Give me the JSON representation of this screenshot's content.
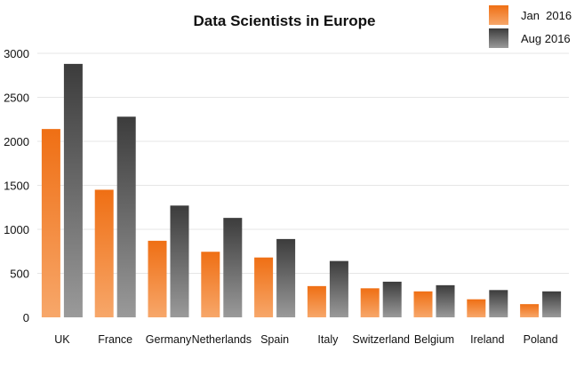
{
  "chart_data": {
    "type": "bar",
    "title": "Data Scientists in Europe",
    "xlabel": "",
    "ylabel": "",
    "categories": [
      "UK",
      "France",
      "Germany",
      "Netherlands",
      "Spain",
      "Italy",
      "Switzerland",
      "Belgium",
      "Ireland",
      "Poland"
    ],
    "series": [
      {
        "name": "Jan  2016",
        "values": [
          2140,
          1450,
          870,
          745,
          680,
          355,
          330,
          295,
          205,
          150
        ]
      },
      {
        "name": "Aug 2016",
        "values": [
          2880,
          2280,
          1270,
          1130,
          890,
          640,
          405,
          365,
          310,
          295
        ]
      }
    ],
    "ylim": [
      0,
      3000
    ],
    "yticks": [
      0,
      500,
      1000,
      1500,
      2000,
      2500,
      3000
    ],
    "grid": true,
    "legend_position": "top-right",
    "colors": {
      "Jan  2016": "#f07a23",
      "Aug 2016": "#555555"
    }
  }
}
